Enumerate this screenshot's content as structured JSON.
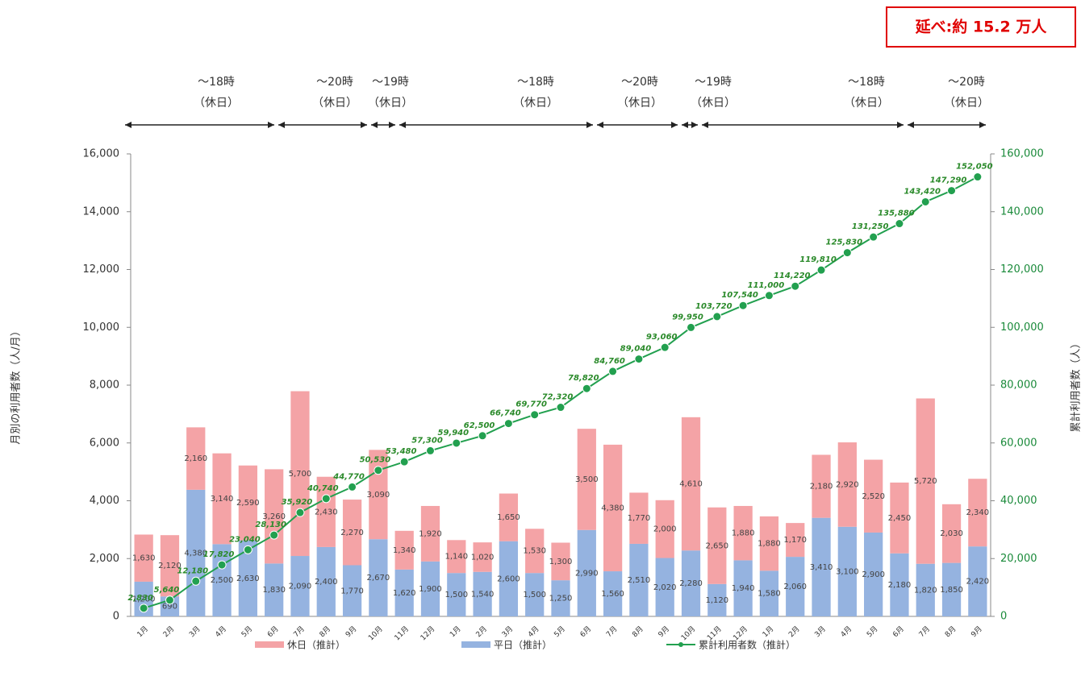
{
  "chart_data": {
    "type": "bar",
    "stacked": true,
    "note": "延べ:約 15.2 万人",
    "annotations": [
      {
        "hours": "〜18時",
        "note": "（休日）"
      },
      {
        "hours": "〜20時",
        "note": "（休日）"
      },
      {
        "hours": "〜19時",
        "note": "（休日）"
      },
      {
        "hours": "〜18時",
        "note": "（休日）"
      },
      {
        "hours": "〜20時",
        "note": "（休日）"
      },
      {
        "hours": "〜19時",
        "note": "（休日）"
      },
      {
        "hours": "〜18時",
        "note": "（休日）"
      },
      {
        "hours": "〜20時",
        "note": "（休日）"
      }
    ],
    "ylabel": "月別の利用者数（人/月）",
    "y2label": "累計利用者数（人）",
    "categories": [
      "1月",
      "2月",
      "3月",
      "4月",
      "5月",
      "6月",
      "7月",
      "8月",
      "9月",
      "10月",
      "11月",
      "12月",
      "1月",
      "2月",
      "3月",
      "4月",
      "5月",
      "6月",
      "7月",
      "8月",
      "9月",
      "10月",
      "11月",
      "12月",
      "1月",
      "2月",
      "3月",
      "4月",
      "5月",
      "6月",
      "7月",
      "8月",
      "9月"
    ],
    "series": [
      {
        "name": "平日（推計）",
        "color": "#95b3e0",
        "values": [
          1200,
          690,
          4380,
          2500,
          2630,
          1830,
          2090,
          2400,
          1770,
          2670,
          1620,
          1900,
          1500,
          1540,
          2600,
          1500,
          1250,
          2990,
          1560,
          2510,
          2020,
          2280,
          1120,
          1940,
          1580,
          2060,
          3410,
          3100,
          2900,
          2180,
          1820,
          1850,
          2420
        ],
        "value_labels": [
          "1,200",
          "690",
          "4,380",
          "2,500",
          "2,630",
          "1,830",
          "2,090",
          "2,400",
          "1,770",
          "2,670",
          "1,620",
          "1,900",
          "1,500",
          "1,540",
          "2,600",
          "1,500",
          "1,250",
          "2,990",
          "1,560",
          "2,510",
          "2,020",
          "2,280",
          "1,120",
          "1,940",
          "1,580",
          "2,060",
          "3,410",
          "3,100",
          "2,900",
          "2,180",
          "1,820",
          "1,850",
          "2,420"
        ]
      },
      {
        "name": "休日（推計）",
        "color": "#f4a3a6",
        "values": [
          1630,
          2120,
          2160,
          3140,
          2590,
          3260,
          5700,
          2430,
          2270,
          3090,
          1340,
          1920,
          1140,
          1020,
          1650,
          1530,
          1300,
          3500,
          4380,
          1770,
          2000,
          4610,
          2650,
          1880,
          1880,
          1170,
          2180,
          2920,
          2520,
          2450,
          5720,
          2030,
          2340
        ],
        "value_labels": [
          "1,630",
          "2,120",
          "2,160",
          "3,140",
          "2,590",
          "3,260",
          "5,700",
          "2,430",
          "2,270",
          "3,090",
          "1,340",
          "1,920",
          "1,140",
          "1,020",
          "1,650",
          "1,530",
          "1,300",
          "3,500",
          "4,380",
          "1,770",
          "2,000",
          "4,610",
          "2,650",
          "1,880",
          "1,880",
          "1,170",
          "2,180",
          "2,920",
          "2,520",
          "2,450",
          "5,720",
          "2,030",
          "2,340"
        ]
      },
      {
        "name": "累計利用者数（推計）",
        "type": "line",
        "axis": "y2",
        "color": "#22a04f",
        "values": [
          2830,
          5640,
          12180,
          17820,
          23040,
          28130,
          35920,
          40740,
          44770,
          50530,
          53480,
          57300,
          59940,
          62500,
          66740,
          69770,
          72320,
          78820,
          84760,
          89040,
          93060,
          99950,
          103720,
          107540,
          111000,
          114220,
          119810,
          125830,
          131250,
          135880,
          143420,
          147290,
          152050
        ],
        "value_labels": [
          "2,830",
          "5,640",
          "12,180",
          "17,820",
          "23,040",
          "28,130",
          "35,920",
          "40,740",
          "44,770",
          "50,530",
          "53,480",
          "57,300",
          "59,940",
          "62,500",
          "66,740",
          "69,770",
          "72,320",
          "78,820",
          "84,760",
          "89,040",
          "93,060",
          "99,950",
          "103,720",
          "107,540",
          "111,000",
          "114,220",
          "119,810",
          "125,830",
          "131,250",
          "135,880",
          "143,420",
          "147,290",
          "152,050"
        ]
      }
    ],
    "ylim": [
      0,
      16000
    ],
    "yticks": [
      0,
      {
        "value": 2000,
        "label": "2,000"
      },
      {
        "value": 4000,
        "label": "4,000"
      },
      {
        "value": 6000,
        "label": "6,000"
      },
      {
        "value": 8000,
        "label": "8,000"
      },
      {
        "value": 10000,
        "label": "10,000"
      },
      {
        "value": 12000,
        "label": "12,000"
      },
      {
        "value": 14000,
        "label": "14,000"
      },
      {
        "value": 16000,
        "label": "16,000"
      }
    ],
    "y2lim": [
      0,
      160000
    ],
    "y2ticks": [
      0,
      {
        "value": 20000,
        "label": "20,000"
      },
      {
        "value": 40000,
        "label": "40,000"
      },
      {
        "value": 60000,
        "label": "60,000"
      },
      {
        "value": 80000,
        "label": "80,000"
      },
      {
        "value": 100000,
        "label": "100,000"
      },
      {
        "value": 120000,
        "label": "120,000"
      },
      {
        "value": 140000,
        "label": "140,000"
      },
      {
        "value": 160000,
        "label": "160,000"
      }
    ]
  }
}
